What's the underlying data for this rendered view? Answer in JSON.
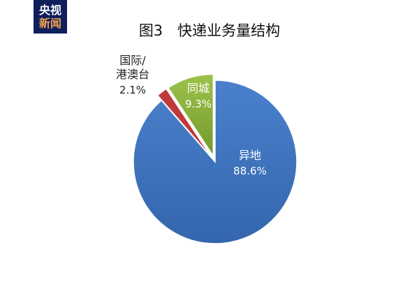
{
  "logo": {
    "line1": "央视",
    "line2": "新闻"
  },
  "chart_data": {
    "type": "pie",
    "title": "图3　快递业务量结构",
    "start": "top",
    "direction": "clockwise",
    "slices": [
      {
        "label": "异地",
        "value": 88.6,
        "value_label": "88.6%",
        "color": "#3f74c0",
        "exploded": false
      },
      {
        "label": "国际/港澳台",
        "value": 2.1,
        "value_label": "2.1%",
        "color": "#c0393b",
        "exploded": true
      },
      {
        "label": "同城",
        "value": 9.3,
        "value_label": "9.3%",
        "color": "#8db43e",
        "exploded": true
      }
    ]
  }
}
